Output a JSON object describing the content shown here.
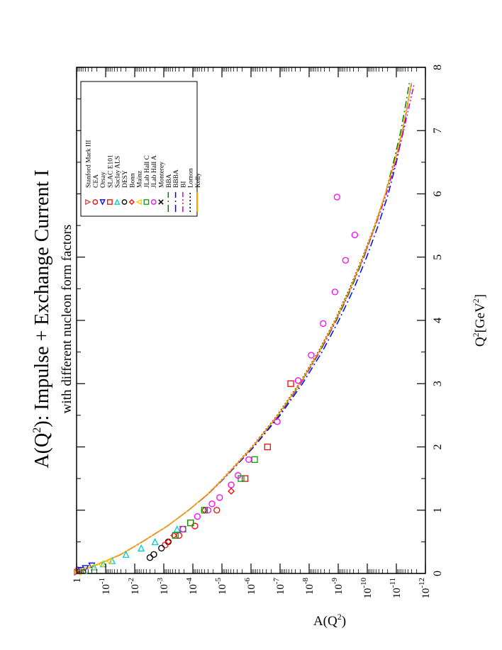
{
  "chart_data": {
    "type": "scatter",
    "title": "A(Q",
    "title_sup": "2",
    "title_rest": "): Impulse + Exchange Current I",
    "subtitle": "with different nucleon form factors",
    "xlabel": "Q",
    "xlabel_sup": "2",
    "xlabel_rest": "[GeV",
    "xlabel_sup2": "2",
    "xlabel_end": "]",
    "ylabel": "A(Q",
    "ylabel_sup": "2",
    "ylabel_end": ")",
    "xlim": [
      0,
      8
    ],
    "ylim_log10": [
      -12,
      0
    ],
    "y_scale": "log",
    "x_ticks": [
      "0",
      "1",
      "2",
      "3",
      "4",
      "5",
      "6",
      "7",
      "8"
    ],
    "y_ticks": [
      {
        "base": "1",
        "exp": ""
      },
      {
        "base": "10",
        "exp": "-1"
      },
      {
        "base": "10",
        "exp": "-2"
      },
      {
        "base": "10",
        "exp": "-3"
      },
      {
        "base": "10",
        "exp": "-4"
      },
      {
        "base": "10",
        "exp": "-5"
      },
      {
        "base": "10",
        "exp": "-6"
      },
      {
        "base": "10",
        "exp": "-7"
      },
      {
        "base": "10",
        "exp": "-8"
      },
      {
        "base": "10",
        "exp": "-9"
      },
      {
        "base": "10",
        "exp": "-10"
      },
      {
        "base": "10",
        "exp": "-11"
      },
      {
        "base": "10",
        "exp": "-12"
      }
    ],
    "grid": false,
    "legend_position": "top-right",
    "orientation_note": "figure is rotated 90 degrees counter-clockwise on the page",
    "series": [
      {
        "name": "Stanford Mark III",
        "marker": "triangle-down",
        "color": "#c0504d",
        "points": [
          [
            0.02,
            0.95
          ],
          [
            0.04,
            0.85
          ],
          [
            0.06,
            0.75
          ]
        ]
      },
      {
        "name": "CEA",
        "marker": "circle",
        "color": "#ff0000",
        "points": [
          [
            0.3,
            0.0022
          ],
          [
            0.45,
            0.0009
          ],
          [
            0.6,
            0.0003
          ],
          [
            0.75,
            8.5e-05
          ],
          [
            1.0,
            1.5e-05
          ]
        ]
      },
      {
        "name": "Orsay",
        "marker": "triangle-left",
        "color": "#0000ff",
        "points": [
          [
            0.05,
            0.7
          ],
          [
            0.08,
            0.5
          ],
          [
            0.12,
            0.3
          ]
        ]
      },
      {
        "name": "SLAC E101",
        "marker": "square",
        "color": "#ff0000",
        "points": [
          [
            0.8,
            0.00012
          ],
          [
            1.5,
            1.6e-06
          ],
          [
            2.0,
            2.7e-07
          ],
          [
            3.0,
            4.3e-08
          ]
        ]
      },
      {
        "name": "Saclay ALS",
        "marker": "triangle-right",
        "color": "#00cccc",
        "points": [
          [
            0.05,
            0.55
          ],
          [
            0.1,
            0.25
          ],
          [
            0.15,
            0.12
          ],
          [
            0.2,
            0.06
          ],
          [
            0.3,
            0.02
          ],
          [
            0.4,
            0.006
          ],
          [
            0.5,
            0.002
          ],
          [
            0.7,
            0.00035
          ]
        ]
      },
      {
        "name": "DESY",
        "marker": "circle",
        "color": "#000000",
        "points": [
          [
            0.25,
            0.003
          ],
          [
            0.3,
            0.0022
          ],
          [
            0.4,
            0.0012
          ],
          [
            0.5,
            0.0007
          ]
        ]
      },
      {
        "name": "Bonn",
        "marker": "diamond",
        "color": "#ff0000",
        "points": [
          [
            0.5,
            0.0007
          ],
          [
            0.6,
            0.00045
          ],
          [
            1.0,
            4e-05
          ],
          [
            1.3,
            4.8e-06
          ]
        ]
      },
      {
        "name": "Mainz",
        "marker": "triangle-up",
        "color": "#ffcc00",
        "points": [
          [
            0.02,
            0.9
          ],
          [
            0.05,
            0.6
          ],
          [
            0.1,
            0.3
          ],
          [
            0.15,
            0.15
          ],
          [
            0.2,
            0.08
          ]
        ]
      },
      {
        "name": "JLab Hall C",
        "marker": "square",
        "color": "#00a000",
        "points": [
          [
            0.6,
            0.0004
          ],
          [
            0.7,
            0.00022
          ],
          [
            0.8,
            0.00012
          ],
          [
            1.0,
            4e-05
          ],
          [
            1.5,
            2.2e-06
          ],
          [
            1.8,
            7.5e-07
          ]
        ]
      },
      {
        "name": "JLab Hall A",
        "marker": "circle",
        "color": "#ff00ff",
        "points": [
          [
            0.7,
            0.00022
          ],
          [
            0.9,
            7e-05
          ],
          [
            1.0,
            3e-05
          ],
          [
            1.1,
            2.2e-05
          ],
          [
            1.2,
            1.2e-05
          ],
          [
            1.4,
            4.8e-06
          ],
          [
            1.55,
            2.8e-06
          ],
          [
            1.8,
            1.2e-06
          ],
          [
            2.4,
            1.25e-07
          ],
          [
            3.05,
            2.4e-08
          ],
          [
            3.45,
            8.5e-09
          ],
          [
            3.95,
            3.3e-09
          ],
          [
            4.45,
            1.3e-09
          ],
          [
            4.95,
            5.6e-10
          ],
          [
            5.35,
            2.7e-10
          ],
          [
            5.95,
            1.1e-09
          ]
        ]
      },
      {
        "name": "Monterey",
        "marker": "cross",
        "color": "#000000",
        "points": []
      }
    ],
    "theory_curves": [
      {
        "name": "BBA",
        "style": "dash-dot",
        "color": "#008000",
        "points": [
          [
            0,
            1
          ],
          [
            0.05,
            0.62
          ],
          [
            0.1,
            0.32
          ],
          [
            0.2,
            0.095
          ],
          [
            0.3,
            0.03
          ],
          [
            0.5,
            0.0055
          ],
          [
            0.75,
            0.00075
          ],
          [
            1,
            0.00014
          ],
          [
            1.25,
            3.1e-05
          ],
          [
            1.5,
            8.8e-06
          ],
          [
            2,
            8.5e-07
          ],
          [
            2.5,
            1.1e-07
          ],
          [
            3,
            1.95e-08
          ],
          [
            3.5,
            4.3e-09
          ],
          [
            4,
            1.15e-09
          ],
          [
            4.5,
            3.6e-10
          ],
          [
            5,
            1.3e-10
          ],
          [
            5.5,
            5.3e-11
          ],
          [
            6,
            2.4e-11
          ],
          [
            6.5,
            1.25e-11
          ],
          [
            7,
            7e-12
          ],
          [
            7.5,
            4.4e-12
          ],
          [
            7.75,
            3.6e-12
          ]
        ]
      },
      {
        "name": "BBBA",
        "style": "dash-dot",
        "color": "#0000ff",
        "points": [
          [
            0,
            1
          ],
          [
            0.05,
            0.62
          ],
          [
            0.1,
            0.32
          ],
          [
            0.2,
            0.095
          ],
          [
            0.3,
            0.03
          ],
          [
            0.5,
            0.0055
          ],
          [
            0.75,
            0.00075
          ],
          [
            1,
            0.00014
          ],
          [
            1.25,
            3.1e-05
          ],
          [
            1.5,
            8.5e-06
          ],
          [
            2,
            8e-07
          ],
          [
            2.5,
            1e-07
          ],
          [
            3,
            1.7e-08
          ],
          [
            3.5,
            3.6e-09
          ],
          [
            4,
            9.5e-10
          ],
          [
            4.5,
            2.9e-10
          ],
          [
            5,
            1.05e-10
          ],
          [
            5.5,
            4.2e-11
          ],
          [
            6,
            1.9e-11
          ],
          [
            6.5,
            1e-11
          ],
          [
            7,
            5.8e-12
          ],
          [
            7.5,
            3.8e-12
          ],
          [
            7.75,
            3e-12
          ]
        ]
      },
      {
        "name": "BI",
        "style": "dash-dot-dot",
        "color": "#cc00cc",
        "points": [
          [
            0,
            1
          ],
          [
            0.05,
            0.62
          ],
          [
            0.1,
            0.32
          ],
          [
            0.2,
            0.095
          ],
          [
            0.3,
            0.03
          ],
          [
            0.5,
            0.0055
          ],
          [
            0.75,
            0.00075
          ],
          [
            1,
            0.00014
          ],
          [
            1.25,
            3.1e-05
          ],
          [
            1.5,
            8.8e-06
          ],
          [
            2,
            8.8e-07
          ],
          [
            2.5,
            1.15e-07
          ],
          [
            3,
            2e-08
          ],
          [
            3.5,
            4.4e-09
          ],
          [
            4,
            1.2e-09
          ],
          [
            4.5,
            3.8e-10
          ],
          [
            5,
            1.35e-10
          ],
          [
            5.5,
            5.2e-11
          ],
          [
            6,
            2.2e-11
          ],
          [
            6.5,
            1.05e-11
          ],
          [
            7,
            5.6e-12
          ],
          [
            7.5,
            3.2e-12
          ],
          [
            7.75,
            2.4e-12
          ]
        ]
      },
      {
        "name": "Lomon",
        "style": "dotted",
        "color": "#000000",
        "points": [
          [
            0,
            1
          ],
          [
            0.05,
            0.62
          ],
          [
            0.1,
            0.32
          ],
          [
            0.2,
            0.095
          ],
          [
            0.3,
            0.03
          ],
          [
            0.5,
            0.0055
          ],
          [
            0.75,
            0.00075
          ],
          [
            1,
            0.00014
          ],
          [
            1.25,
            3.2e-05
          ],
          [
            1.5,
            9.2e-06
          ],
          [
            2,
            9.3e-07
          ],
          [
            2.5,
            1.25e-07
          ],
          [
            3,
            2.2e-08
          ],
          [
            3.5,
            4.9e-09
          ],
          [
            4,
            1.3e-09
          ],
          [
            4.5,
            4.1e-10
          ],
          [
            5,
            1.45e-10
          ],
          [
            5.5,
            5.6e-11
          ],
          [
            6,
            2.4e-11
          ],
          [
            6.5,
            1.15e-11
          ],
          [
            7,
            6.2e-12
          ],
          [
            7.5,
            3.8e-12
          ],
          [
            7.75,
            3e-12
          ]
        ]
      },
      {
        "name": "Kelly",
        "style": "solid",
        "color": "#ffa500",
        "points": [
          [
            0,
            1
          ],
          [
            0.05,
            0.62
          ],
          [
            0.1,
            0.32
          ],
          [
            0.2,
            0.095
          ],
          [
            0.3,
            0.03
          ],
          [
            0.5,
            0.0055
          ],
          [
            0.75,
            0.00075
          ],
          [
            1,
            0.00014
          ],
          [
            1.25,
            3.2e-05
          ],
          [
            1.5,
            9e-06
          ],
          [
            2,
            9e-07
          ],
          [
            2.5,
            1.2e-07
          ],
          [
            3,
            2.1e-08
          ],
          [
            3.5,
            4.7e-09
          ],
          [
            4,
            1.25e-09
          ],
          [
            4.5,
            3.9e-10
          ],
          [
            5,
            1.4e-10
          ],
          [
            5.5,
            5.5e-11
          ],
          [
            6,
            2.4e-11
          ],
          [
            6.5,
            1.15e-11
          ],
          [
            7,
            6.2e-12
          ],
          [
            7.5,
            3.8e-12
          ],
          [
            7.75,
            3.1e-12
          ]
        ]
      }
    ]
  }
}
